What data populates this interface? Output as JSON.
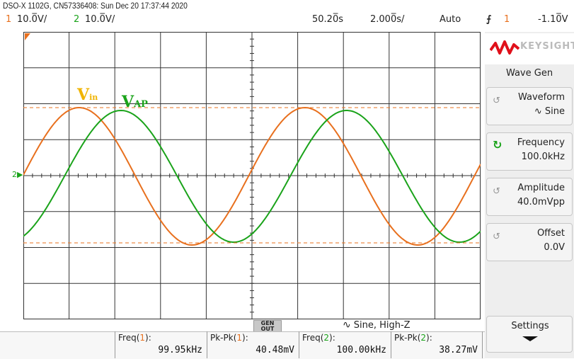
{
  "header": {
    "title": "DSO-X 1102G, CN57336408: Sun Dec 20 17:37:44 2020",
    "ch1_num": "1",
    "ch1_scale": "10.0̅V/",
    "ch2_num": "2",
    "ch2_scale": "10.0̅V/",
    "time_delay": "50.20̅s",
    "time_scale": "2.000̅s/",
    "trigger_mode": "Auto",
    "trigger_icon": "rising-edge-icon",
    "trigger_source": "1",
    "trigger_level": "-1.10̅V"
  },
  "colors": {
    "ch1": "#e8701e",
    "ch2": "#1aa31a",
    "vin_label": "#f0b400"
  },
  "waveform_labels": {
    "vin_main": "V",
    "vin_sub": "in",
    "vap_main": "V",
    "vap_sub": "AP"
  },
  "ground_marker": "2",
  "gen_out": {
    "line1": "GEN",
    "line2": "OUT"
  },
  "wave_status": "Sine, High-Z",
  "measurements": [
    {
      "label_prefix": "Freq(",
      "channel": "1",
      "label_suffix": "):",
      "value": "99.95kHz"
    },
    {
      "label_prefix": "Pk-Pk(",
      "channel": "1",
      "label_suffix": "):",
      "value": "40.48mV"
    },
    {
      "label_prefix": "Freq(",
      "channel": "2",
      "label_suffix": "):",
      "value": "100.00kHz"
    },
    {
      "label_prefix": "Pk-Pk(",
      "channel": "2",
      "label_suffix": "):",
      "value": "38.27mV"
    }
  ],
  "right_panel": {
    "logo_text": "KEYSIGHT",
    "menu_title": "Wave Gen",
    "softkeys": [
      {
        "title": "Waveform",
        "value": "Sine",
        "icon": "sine-icon"
      },
      {
        "title": "Frequency",
        "value": "100.0kHz",
        "icon": "rotate-knob-icon"
      },
      {
        "title": "Amplitude",
        "value": "40.0mVpp",
        "icon": "rotate-knob-icon"
      },
      {
        "title": "Offset",
        "value": "0.0V",
        "icon": "rotate-knob-icon"
      }
    ],
    "settings_label": "Settings"
  }
}
